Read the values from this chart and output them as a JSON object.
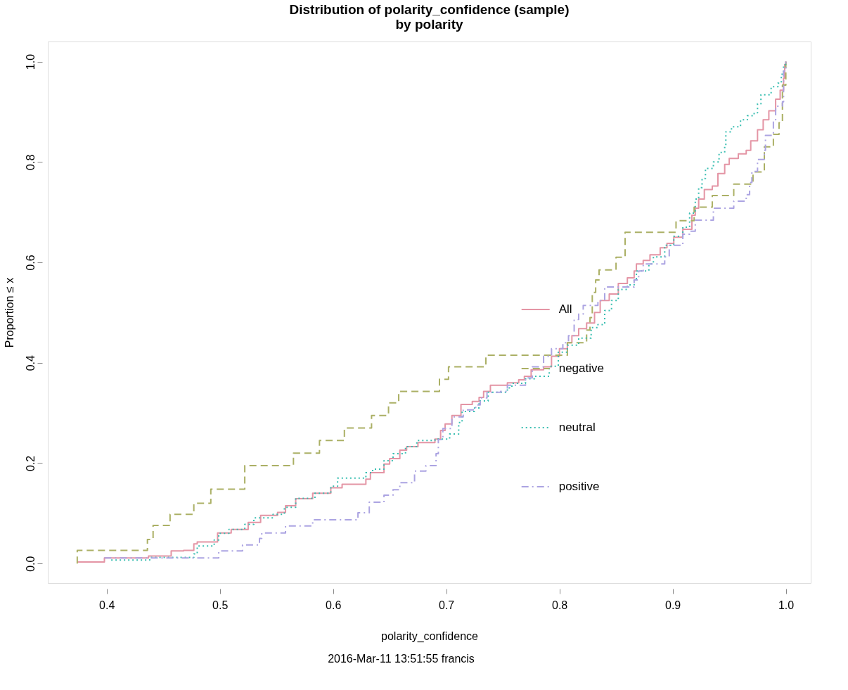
{
  "chart_data": {
    "type": "step",
    "title": "Distribution of polarity_confidence (sample)\nby polarity",
    "xlabel": "polarity_confidence",
    "ylabel": "Proportion ≤ x",
    "annotations": [
      "2016-Mar-11 13:51:55 francis"
    ],
    "xlim": [
      0.348,
      1.022
    ],
    "ylim": [
      -0.039,
      1.04
    ],
    "xticks": [
      0.4,
      0.5,
      0.6,
      0.7,
      0.8,
      0.9,
      {
        "value": 1.0,
        "label": "1.0"
      }
    ],
    "yticks": [
      {
        "value": 0,
        "label": "0.0"
      },
      0.2,
      0.4,
      0.6,
      0.8,
      {
        "value": 1.0,
        "label": "1.0"
      }
    ],
    "grid": false,
    "legend": "right",
    "marker": "none",
    "series": [
      {
        "name": "All",
        "color": "#e495a5",
        "line_style": "solid",
        "x": [
          0.374,
          0.398,
          0.437,
          0.457,
          0.468,
          0.477,
          0.48,
          0.498,
          0.51,
          0.525,
          0.536,
          0.551,
          0.558,
          0.567,
          0.582,
          0.598,
          0.608,
          0.629,
          0.633,
          0.645,
          0.65,
          0.659,
          0.665,
          0.675,
          0.69,
          0.695,
          0.699,
          0.705,
          0.713,
          0.723,
          0.729,
          0.733,
          0.739,
          0.754,
          0.764,
          0.769,
          0.775,
          0.786,
          0.793,
          0.8,
          0.807,
          0.811,
          0.817,
          0.824,
          0.831,
          0.836,
          0.844,
          0.852,
          0.86,
          0.866,
          0.868,
          0.874,
          0.88,
          0.889,
          0.895,
          0.901,
          0.909,
          0.917,
          0.92,
          0.923,
          0.928,
          0.935,
          0.94,
          0.946,
          0.95,
          0.958,
          0.965,
          0.969,
          0.975,
          0.98,
          0.985,
          0.991,
          0.995,
          0.998,
          0.999,
          1.0
        ],
        "values": [
          0.003,
          0.011,
          0.015,
          0.025,
          0.026,
          0.039,
          0.043,
          0.061,
          0.068,
          0.082,
          0.096,
          0.102,
          0.115,
          0.129,
          0.14,
          0.151,
          0.158,
          0.168,
          0.181,
          0.198,
          0.209,
          0.226,
          0.233,
          0.241,
          0.248,
          0.265,
          0.278,
          0.295,
          0.317,
          0.323,
          0.331,
          0.343,
          0.355,
          0.36,
          0.366,
          0.373,
          0.386,
          0.392,
          0.413,
          0.428,
          0.44,
          0.454,
          0.468,
          0.479,
          0.5,
          0.524,
          0.537,
          0.558,
          0.569,
          0.583,
          0.597,
          0.604,
          0.615,
          0.629,
          0.638,
          0.65,
          0.666,
          0.694,
          0.708,
          0.726,
          0.745,
          0.752,
          0.777,
          0.795,
          0.807,
          0.816,
          0.823,
          0.842,
          0.864,
          0.884,
          0.902,
          0.925,
          0.943,
          0.967,
          0.994,
          1.0
        ]
      },
      {
        "name": "negative",
        "color": "#abb065",
        "line_style": "dashed",
        "x": [
          0.374,
          0.374,
          0.436,
          0.441,
          0.456,
          0.477,
          0.492,
          0.522,
          0.565,
          0.588,
          0.61,
          0.634,
          0.649,
          0.658,
          0.694,
          0.702,
          0.735,
          0.807,
          0.824,
          0.827,
          0.829,
          0.832,
          0.835,
          0.85,
          0.858,
          0.903,
          0.919,
          0.935,
          0.954,
          0.971,
          0.981,
          0.989,
          0.994,
          0.997,
          1.0
        ],
        "values": [
          0.0,
          0.026,
          0.048,
          0.076,
          0.098,
          0.12,
          0.148,
          0.195,
          0.22,
          0.245,
          0.27,
          0.295,
          0.32,
          0.343,
          0.367,
          0.392,
          0.415,
          0.44,
          0.465,
          0.49,
          0.54,
          0.565,
          0.585,
          0.61,
          0.66,
          0.683,
          0.71,
          0.733,
          0.756,
          0.78,
          0.83,
          0.855,
          0.878,
          0.953,
          1.0
        ]
      },
      {
        "name": "neutral",
        "color": "#39beb1",
        "line_style": "dotted",
        "x": [
          0.404,
          0.438,
          0.477,
          0.48,
          0.495,
          0.499,
          0.508,
          0.522,
          0.53,
          0.547,
          0.557,
          0.567,
          0.584,
          0.598,
          0.604,
          0.629,
          0.635,
          0.645,
          0.653,
          0.664,
          0.674,
          0.69,
          0.703,
          0.711,
          0.714,
          0.725,
          0.729,
          0.737,
          0.754,
          0.758,
          0.77,
          0.778,
          0.791,
          0.799,
          0.807,
          0.817,
          0.828,
          0.834,
          0.84,
          0.846,
          0.852,
          0.86,
          0.866,
          0.868,
          0.879,
          0.883,
          0.893,
          0.901,
          0.909,
          0.915,
          0.92,
          0.923,
          0.926,
          0.929,
          0.936,
          0.941,
          0.946,
          0.947,
          0.952,
          0.96,
          0.966,
          0.972,
          0.975,
          0.978,
          0.987,
          0.993,
          0.996,
          0.998,
          1.0
        ],
        "values": [
          0.007,
          0.012,
          0.019,
          0.035,
          0.047,
          0.06,
          0.068,
          0.078,
          0.091,
          0.098,
          0.112,
          0.13,
          0.14,
          0.154,
          0.17,
          0.181,
          0.188,
          0.205,
          0.219,
          0.233,
          0.245,
          0.248,
          0.258,
          0.281,
          0.303,
          0.31,
          0.324,
          0.341,
          0.35,
          0.359,
          0.368,
          0.373,
          0.393,
          0.421,
          0.435,
          0.449,
          0.47,
          0.476,
          0.504,
          0.524,
          0.546,
          0.555,
          0.565,
          0.583,
          0.597,
          0.611,
          0.634,
          0.652,
          0.67,
          0.698,
          0.726,
          0.749,
          0.767,
          0.787,
          0.8,
          0.819,
          0.832,
          0.86,
          0.87,
          0.884,
          0.892,
          0.898,
          0.916,
          0.934,
          0.95,
          0.957,
          0.975,
          0.994,
          1.0
        ]
      },
      {
        "name": "positive",
        "color": "#aca4e2",
        "line_style": "dashdot",
        "x": [
          0.398,
          0.499,
          0.52,
          0.535,
          0.537,
          0.558,
          0.582,
          0.622,
          0.632,
          0.645,
          0.653,
          0.659,
          0.672,
          0.682,
          0.691,
          0.693,
          0.697,
          0.705,
          0.715,
          0.726,
          0.73,
          0.736,
          0.748,
          0.754,
          0.77,
          0.776,
          0.786,
          0.793,
          0.803,
          0.808,
          0.813,
          0.817,
          0.821,
          0.834,
          0.84,
          0.866,
          0.87,
          0.874,
          0.893,
          0.897,
          0.909,
          0.915,
          0.92,
          0.936,
          0.954,
          0.965,
          0.968,
          0.97,
          0.975,
          0.981,
          0.982,
          0.989,
          0.991,
          0.997,
          0.998,
          1.0
        ],
        "values": [
          0.011,
          0.025,
          0.037,
          0.05,
          0.061,
          0.075,
          0.087,
          0.101,
          0.122,
          0.136,
          0.147,
          0.161,
          0.184,
          0.195,
          0.219,
          0.247,
          0.269,
          0.292,
          0.306,
          0.316,
          0.33,
          0.341,
          0.343,
          0.355,
          0.37,
          0.392,
          0.413,
          0.428,
          0.44,
          0.454,
          0.486,
          0.497,
          0.514,
          0.524,
          0.551,
          0.565,
          0.583,
          0.597,
          0.611,
          0.634,
          0.656,
          0.662,
          0.684,
          0.708,
          0.722,
          0.735,
          0.759,
          0.781,
          0.805,
          0.823,
          0.853,
          0.884,
          0.911,
          0.92,
          0.981,
          1.0
        ]
      }
    ]
  }
}
